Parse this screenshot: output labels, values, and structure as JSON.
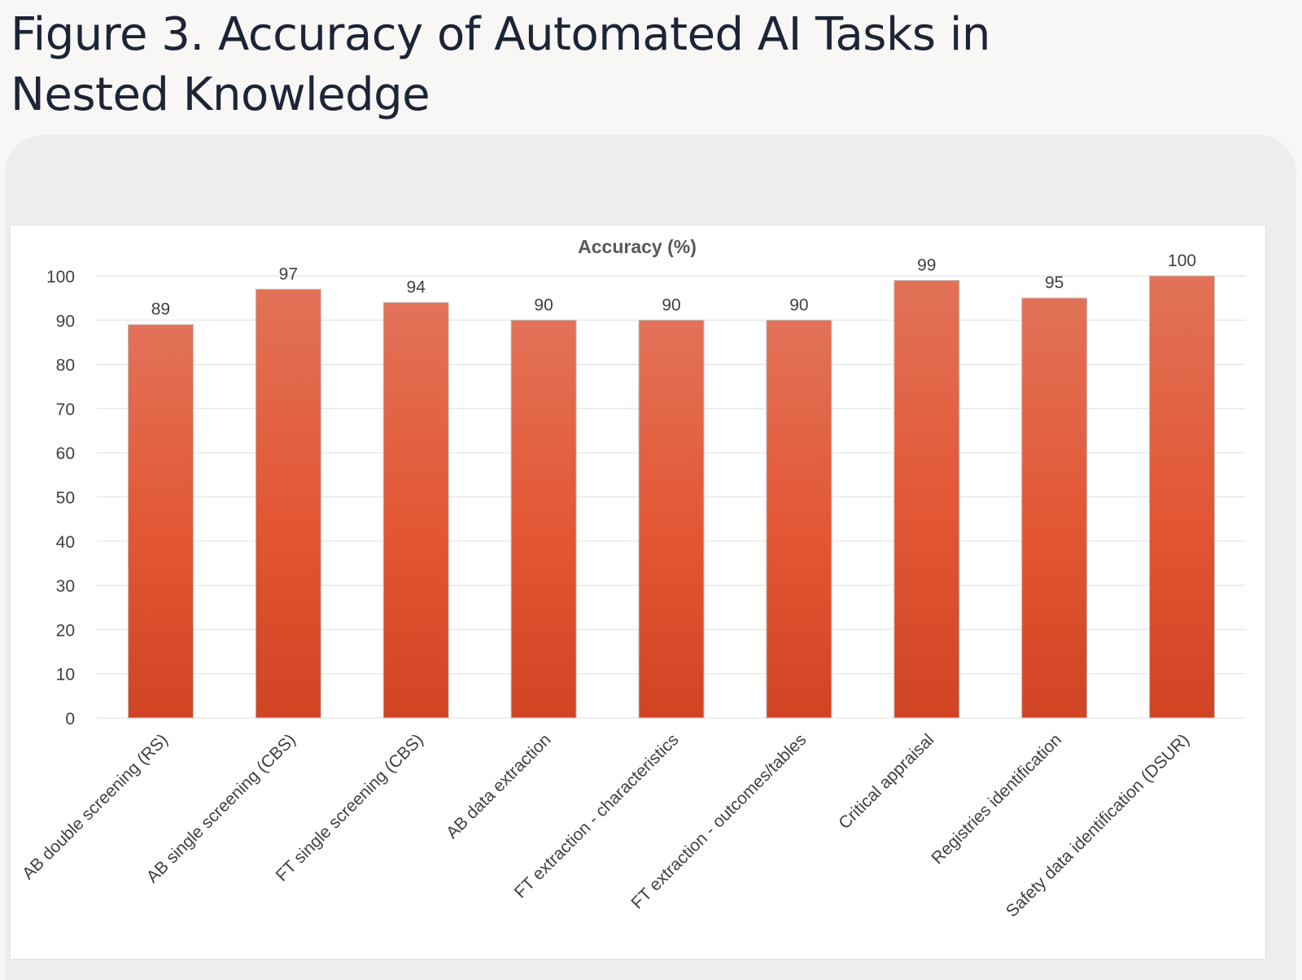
{
  "figure": {
    "title": "Figure 3. Accuracy of Automated AI Tasks in Nested Knowledge"
  },
  "colors": {
    "bar_top": "#e27258",
    "bar_mid": "#e25633",
    "bar_bottom": "#d04424",
    "grid": "#e4e4e4",
    "text": "#404040",
    "chart_title": "#595959"
  },
  "chart_data": {
    "type": "bar",
    "title": "Accuracy (%)",
    "xlabel": "",
    "ylabel": "",
    "categories": [
      "AB double screening (RS)",
      "AB single screening (CBS)",
      "FT single screening (CBS)",
      "AB data extraction",
      "FT extraction - characteristics",
      "FT extraction - outcomes/tables",
      "Critical appraisal",
      "Registries identification",
      "Safety data identification (DSUR)"
    ],
    "values": [
      89,
      97,
      94,
      90,
      90,
      90,
      99,
      95,
      100
    ],
    "ylim": [
      0,
      100
    ],
    "yticks": [
      0,
      10,
      20,
      30,
      40,
      50,
      60,
      70,
      80,
      90,
      100
    ],
    "grid": true,
    "legend": "none",
    "data_labels": true
  }
}
